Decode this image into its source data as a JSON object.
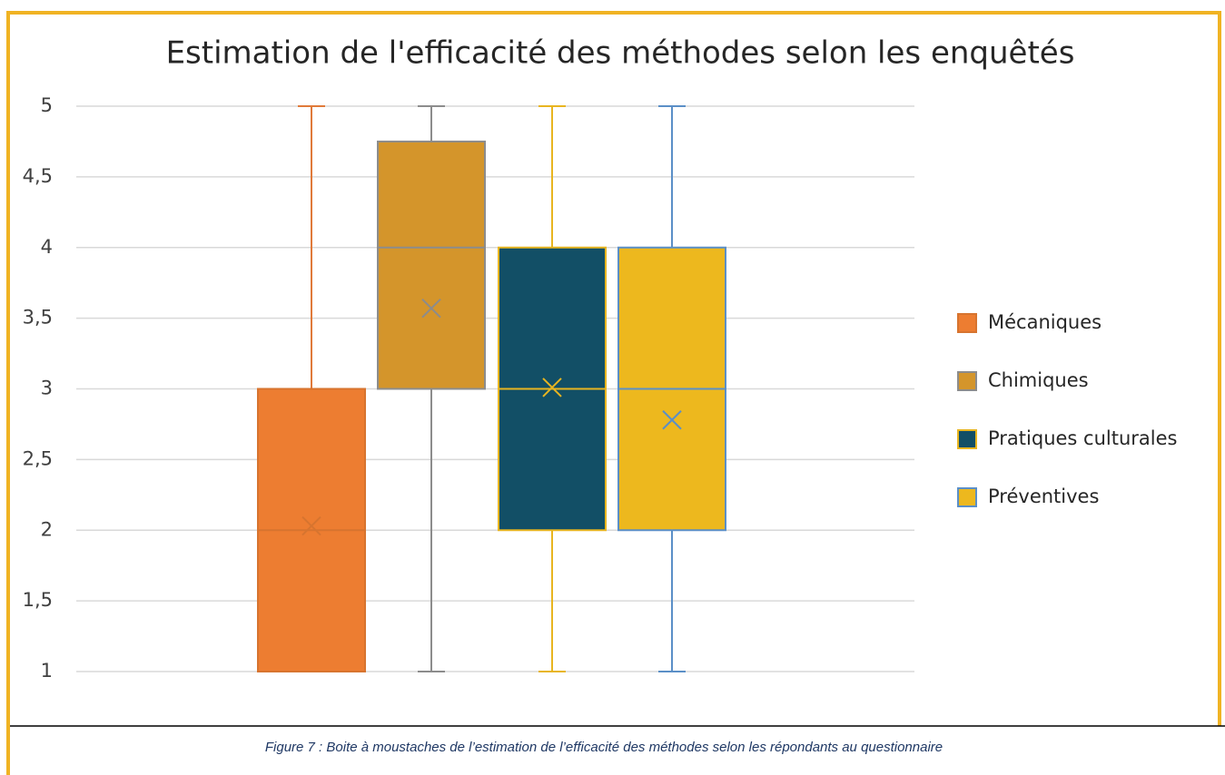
{
  "chart_data": {
    "type": "box",
    "title": "Estimation de l'efficacité des méthodes selon les enquêtés",
    "ylim": [
      1,
      5
    ],
    "yticks": [
      1,
      {
        "value": 1.5,
        "label": "1,5"
      },
      2,
      {
        "value": 2.5,
        "label": "2,5"
      },
      3,
      {
        "value": 3.5,
        "label": "3,5"
      },
      4,
      {
        "value": 4.5,
        "label": "4,5"
      },
      5
    ],
    "grid": true,
    "legend": "right",
    "series": [
      {
        "name": "Mécaniques",
        "color": "#ed7d31",
        "edge": "#d7742f",
        "whisker": "#e07a3a",
        "min": 1,
        "q1": 1,
        "median": 2,
        "q3": 3,
        "max": 5,
        "mean": 2.03
      },
      {
        "name": "Chimiques",
        "color": "#d4952b",
        "edge": "#8c8c8c",
        "whisker": "#8c8c8c",
        "min": 1,
        "q1": 3,
        "median": 4,
        "q3": 4.75,
        "max": 5,
        "mean": 3.57
      },
      {
        "name": "Pratiques culturales",
        "color": "#124f66",
        "edge": "#e8b520",
        "whisker": "#e8b520",
        "min": 1,
        "q1": 2,
        "median": 3,
        "q3": 4,
        "max": 5,
        "mean": 3.01
      },
      {
        "name": "Préventives",
        "color": "#edb81e",
        "edge": "#5b8fc7",
        "whisker": "#5b8fc7",
        "min": 1,
        "q1": 2,
        "median": 3,
        "q3": 4,
        "max": 5,
        "mean": 2.78
      }
    ]
  },
  "caption": "Figure 7 : Boite à moustaches de l’estimation de l’efficacité des méthodes selon les répondants au questionnaire"
}
